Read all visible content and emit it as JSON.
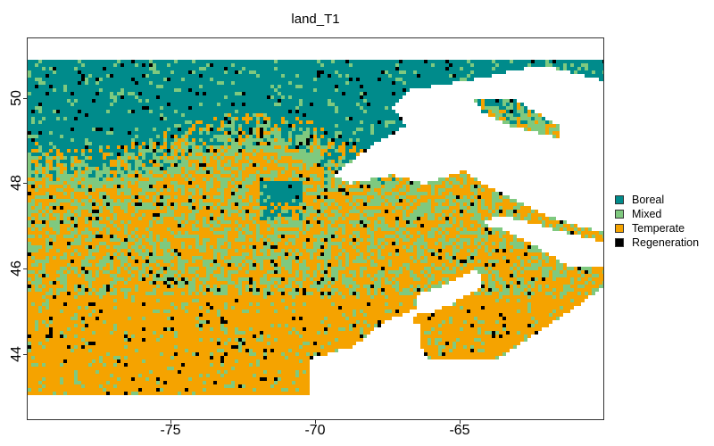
{
  "title": "land_T1",
  "x_axis": {
    "ticks": [
      "-75",
      "-70",
      "-65"
    ]
  },
  "y_axis": {
    "ticks": [
      "44",
      "46",
      "48",
      "50"
    ]
  },
  "legend": {
    "items": [
      {
        "label": "Boreal",
        "color": "#008B8B"
      },
      {
        "label": "Mixed",
        "color": "#7FC97F"
      },
      {
        "label": "Temperate",
        "color": "#F5A300"
      },
      {
        "label": "Regeneration",
        "color": "#000000"
      }
    ]
  },
  "map_data": {
    "type": "categorical_raster",
    "lon_range": [
      -80,
      -60
    ],
    "lat_range": [
      42.5,
      51.5
    ],
    "categories": [
      "Boreal",
      "Mixed",
      "Temperate",
      "Regeneration"
    ]
  }
}
